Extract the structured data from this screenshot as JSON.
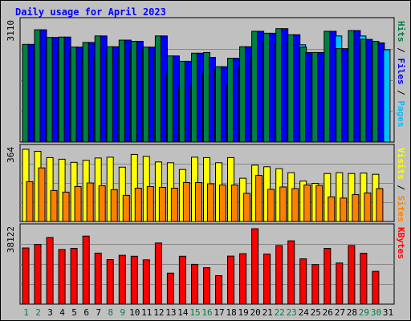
{
  "chart_data": {
    "type": "bar",
    "title": "Daily usage for April 2023",
    "days": [
      "1",
      "2",
      "3",
      "4",
      "5",
      "6",
      "7",
      "8",
      "9",
      "10",
      "11",
      "12",
      "13",
      "14",
      "15",
      "16",
      "17",
      "18",
      "19",
      "20",
      "21",
      "22",
      "23",
      "24",
      "25",
      "26",
      "27",
      "28",
      "29",
      "30",
      "31"
    ],
    "weekend_days": [
      "1",
      "2",
      "8",
      "9",
      "15",
      "16",
      "22",
      "23",
      "29",
      "30"
    ],
    "panels": [
      {
        "name": "hits-files-pages",
        "max_label": "3110",
        "ylim": [
          0,
          3110
        ],
        "right_labels": [
          "Pages",
          "Files",
          "Hits"
        ],
        "right_colors": [
          "#00c0ff",
          "#0000ff",
          "#008040"
        ],
        "series": [
          {
            "name": "Hits",
            "color": "#008040",
            "values": [
              2540,
              2920,
              2720,
              2730,
              2470,
              2590,
              2760,
              2480,
              2650,
              2620,
              2470,
              2760,
              2240,
              2100,
              2310,
              2330,
              1960,
              2180,
              2480,
              2880,
              2830,
              2950,
              2790,
              2470,
              2330,
              2880,
              2430,
              2900,
              2670,
              2620
            ]
          },
          {
            "name": "Files",
            "color": "#0000ff",
            "values": [
              2540,
              2920,
              2720,
              2730,
              2470,
              2590,
              2760,
              2480,
              2650,
              2620,
              2470,
              2760,
              2240,
              2100,
              2310,
              2200,
              1960,
              2180,
              2480,
              2880,
              2830,
              2950,
              2790,
              2330,
              2330,
              2880,
              2430,
              2900,
              2670,
              2580
            ]
          },
          {
            "name": "Pages",
            "color": "#00c0ff",
            "values": [
              2380,
              2390,
              2330,
              2300,
              2180,
              2160,
              2250,
              2230,
              2380,
              2380,
              2300,
              1750,
              1430,
              1440,
              1780,
              1880,
              1520,
              1960,
              2250,
              2620,
              2560,
              2620,
              2530,
              2180,
              1940,
              2760,
              2390,
              2760,
              2470,
              2400
            ]
          }
        ]
      },
      {
        "name": "sites-visits",
        "max_label": "364",
        "ylim": [
          0,
          364
        ],
        "right_labels": [
          "Sites",
          "Visits"
        ],
        "right_colors": [
          "#ff8000",
          "#ffff00"
        ],
        "series": [
          {
            "name": "Visits",
            "color": "#ffff00",
            "values": [
              364,
              354,
              322,
              314,
              298,
              308,
              320,
              324,
              274,
              338,
              328,
              300,
              296,
              262,
              324,
              322,
              296,
              322,
              218,
              284,
              276,
              266,
              246,
              204,
              192,
              242,
              246,
              242,
              244,
              238
            ]
          },
          {
            "name": "Sites",
            "color": "#ff8000",
            "values": [
              200,
              270,
              156,
              148,
              176,
              194,
              180,
              160,
              132,
              168,
              176,
              172,
              168,
              196,
              196,
              190,
              184,
              184,
              142,
              232,
              162,
              174,
              166,
              184,
              182,
              124,
              118,
              136,
              144,
              166
            ]
          }
        ]
      },
      {
        "name": "kbytes",
        "max_label": "38122",
        "ylim": [
          0,
          38122
        ],
        "right_labels": [
          "KBytes"
        ],
        "right_colors": [
          "#ff0000"
        ],
        "series": [
          {
            "name": "KBytes",
            "color": "#ff0000",
            "values": [
              28400,
              30200,
              33700,
              27600,
              28200,
              34400,
              25800,
              22500,
              24700,
              24200,
              22400,
              30900,
              15700,
              24200,
              20100,
              18400,
              14400,
              24300,
              25500,
              38122,
              25300,
              29600,
              32000,
              22900,
              20000,
              28200,
              20800,
              29600,
              25700,
              16600
            ]
          }
        ]
      }
    ]
  }
}
